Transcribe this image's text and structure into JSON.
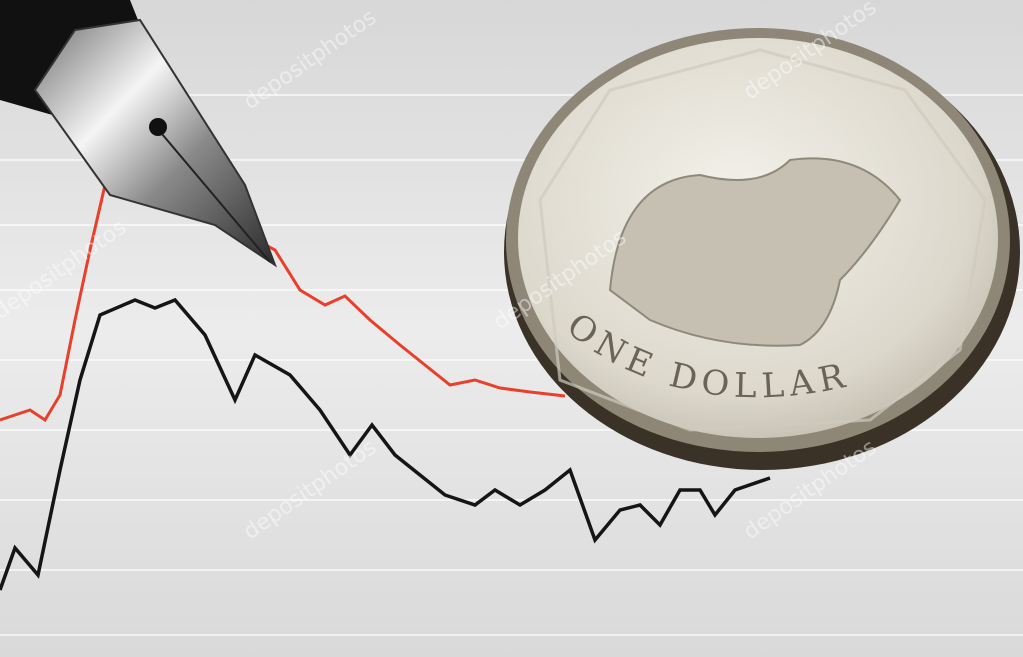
{
  "coin": {
    "inscription": "ONE DOLLAR"
  },
  "watermark": "depositphotos"
}
